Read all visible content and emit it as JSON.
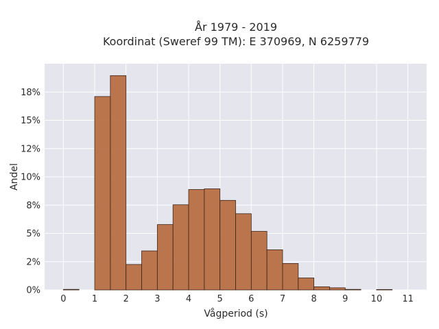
{
  "chart_data": {
    "type": "bar",
    "title": [
      "År 1979 - 2019",
      "Koordinat (Sweref 99 TM): E 370969, N 6259779"
    ],
    "xlabel": "Vågperiod (s)",
    "ylabel": "Andel",
    "xlim": [
      -0.6,
      11.6
    ],
    "ylim": [
      0,
      0.2
    ],
    "x_ticks": [
      0,
      1,
      2,
      3,
      4,
      5,
      6,
      7,
      8,
      9,
      10,
      11
    ],
    "x_tick_labels": [
      "0",
      "1",
      "2",
      "3",
      "4",
      "5",
      "6",
      "7",
      "8",
      "9",
      "10",
      "11"
    ],
    "y_ticks": [
      0,
      0.025,
      0.05,
      0.075,
      0.1,
      0.125,
      0.15,
      0.175
    ],
    "y_tick_labels": [
      "0%",
      "2%",
      "5%",
      "8%",
      "10%",
      "12%",
      "15%",
      "18%"
    ],
    "bin_width": 0.5,
    "bins": [
      {
        "x": 0.0,
        "value": 0.0005
      },
      {
        "x": 1.0,
        "value": 0.171
      },
      {
        "x": 1.5,
        "value": 0.1895
      },
      {
        "x": 2.0,
        "value": 0.0225
      },
      {
        "x": 2.5,
        "value": 0.0345
      },
      {
        "x": 3.0,
        "value": 0.0578
      },
      {
        "x": 3.5,
        "value": 0.0753
      },
      {
        "x": 4.0,
        "value": 0.0888
      },
      {
        "x": 4.5,
        "value": 0.0894
      },
      {
        "x": 5.0,
        "value": 0.0792
      },
      {
        "x": 5.5,
        "value": 0.0674
      },
      {
        "x": 6.0,
        "value": 0.0518
      },
      {
        "x": 6.5,
        "value": 0.0355
      },
      {
        "x": 7.0,
        "value": 0.0234
      },
      {
        "x": 7.5,
        "value": 0.0106
      },
      {
        "x": 8.0,
        "value": 0.0028
      },
      {
        "x": 8.5,
        "value": 0.0019
      },
      {
        "x": 9.0,
        "value": 0.0005
      },
      {
        "x": 10.0,
        "value": 0.0004
      }
    ],
    "colors": {
      "bar": "#b5683b",
      "edge": "#3b2418",
      "plot_bg": "#e5e5ee",
      "grid": "#ffffff"
    },
    "grid": true,
    "legend": "none"
  }
}
